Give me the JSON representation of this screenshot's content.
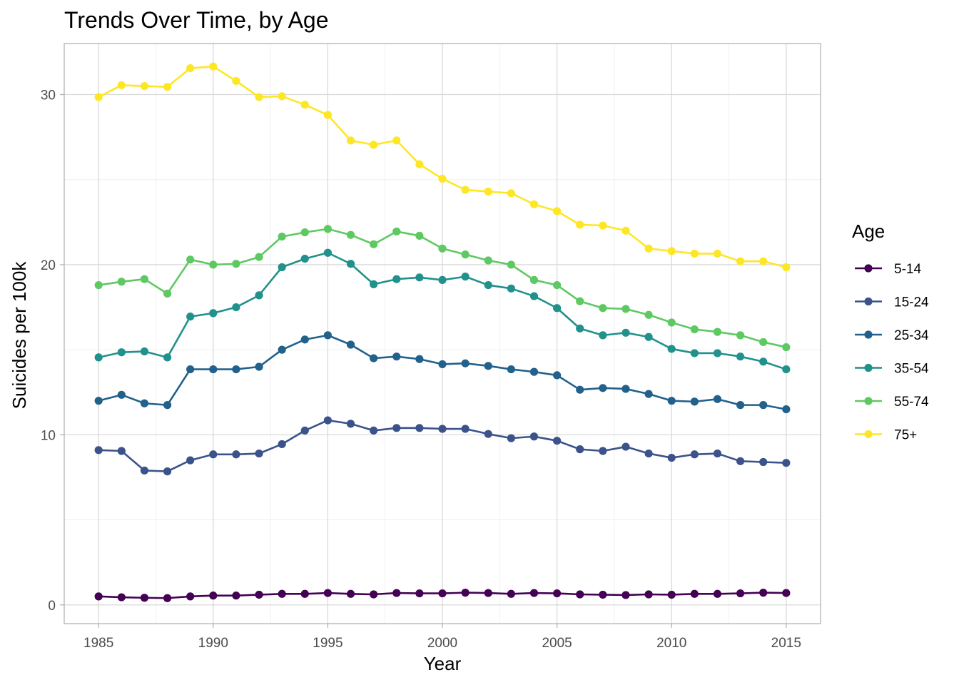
{
  "chart_data": {
    "type": "line",
    "title": "Trends Over Time, by Age",
    "xlabel": "Year",
    "ylabel": "Suicides per 100k",
    "xlim": [
      1983.5,
      2016.5
    ],
    "ylim": [
      -1.1,
      33
    ],
    "x_ticks": [
      1985,
      1990,
      1995,
      2000,
      2005,
      2010,
      2015
    ],
    "y_ticks": [
      0,
      10,
      20,
      30
    ],
    "y_minor_ticks": [
      5,
      15,
      25
    ],
    "grid": true,
    "legend": {
      "title": "Age",
      "placement": "right"
    },
    "x": [
      1985,
      1986,
      1987,
      1988,
      1989,
      1990,
      1991,
      1992,
      1993,
      1994,
      1995,
      1996,
      1997,
      1998,
      1999,
      2000,
      2001,
      2002,
      2003,
      2004,
      2005,
      2006,
      2007,
      2008,
      2009,
      2010,
      2011,
      2012,
      2013,
      2014,
      2015
    ],
    "series": [
      {
        "name": "5-14",
        "color": "#440154",
        "values": [
          0.5,
          0.45,
          0.42,
          0.4,
          0.5,
          0.55,
          0.55,
          0.6,
          0.65,
          0.65,
          0.7,
          0.65,
          0.62,
          0.7,
          0.68,
          0.68,
          0.72,
          0.7,
          0.65,
          0.7,
          0.68,
          0.62,
          0.6,
          0.58,
          0.62,
          0.6,
          0.65,
          0.65,
          0.68,
          0.72,
          0.7
        ]
      },
      {
        "name": "15-24",
        "color": "#3b528b",
        "values": [
          9.1,
          9.05,
          7.9,
          7.85,
          8.5,
          8.85,
          8.85,
          8.9,
          9.45,
          10.25,
          10.85,
          10.65,
          10.25,
          10.4,
          10.4,
          10.35,
          10.35,
          10.05,
          9.8,
          9.9,
          9.65,
          9.15,
          9.05,
          9.3,
          8.9,
          8.65,
          8.85,
          8.9,
          8.45,
          8.4,
          8.35
        ]
      },
      {
        "name": "25-34",
        "color": "#21618c",
        "values": [
          12.0,
          12.35,
          11.85,
          11.75,
          13.85,
          13.85,
          13.85,
          14.0,
          15.0,
          15.6,
          15.85,
          15.3,
          14.5,
          14.6,
          14.45,
          14.15,
          14.2,
          14.05,
          13.85,
          13.7,
          13.5,
          12.65,
          12.75,
          12.7,
          12.4,
          12.0,
          11.95,
          12.1,
          11.75,
          11.75,
          11.5
        ]
      },
      {
        "name": "35-54",
        "color": "#21918c",
        "values": [
          14.55,
          14.85,
          14.9,
          14.55,
          16.95,
          17.15,
          17.5,
          18.2,
          19.85,
          20.35,
          20.7,
          20.05,
          18.85,
          19.15,
          19.25,
          19.1,
          19.3,
          18.8,
          18.6,
          18.15,
          17.45,
          16.25,
          15.85,
          16.0,
          15.75,
          15.05,
          14.8,
          14.8,
          14.6,
          14.3,
          13.85
        ]
      },
      {
        "name": "55-74",
        "color": "#5ec962",
        "values": [
          18.8,
          19.0,
          19.15,
          18.3,
          20.3,
          20.0,
          20.05,
          20.45,
          21.65,
          21.9,
          22.1,
          21.75,
          21.2,
          21.95,
          21.7,
          20.95,
          20.6,
          20.25,
          20.0,
          19.1,
          18.8,
          17.85,
          17.45,
          17.4,
          17.05,
          16.6,
          16.2,
          16.05,
          15.85,
          15.45,
          15.15
        ]
      },
      {
        "name": "75+",
        "color": "#fde725",
        "values": [
          29.85,
          30.55,
          30.5,
          30.45,
          31.55,
          31.65,
          30.8,
          29.85,
          29.9,
          29.4,
          28.8,
          27.3,
          27.05,
          27.3,
          25.9,
          25.05,
          24.4,
          24.3,
          24.2,
          23.55,
          23.15,
          22.35,
          22.3,
          22.0,
          20.95,
          20.8,
          20.65,
          20.65,
          20.2,
          20.2,
          19.85
        ]
      }
    ]
  }
}
